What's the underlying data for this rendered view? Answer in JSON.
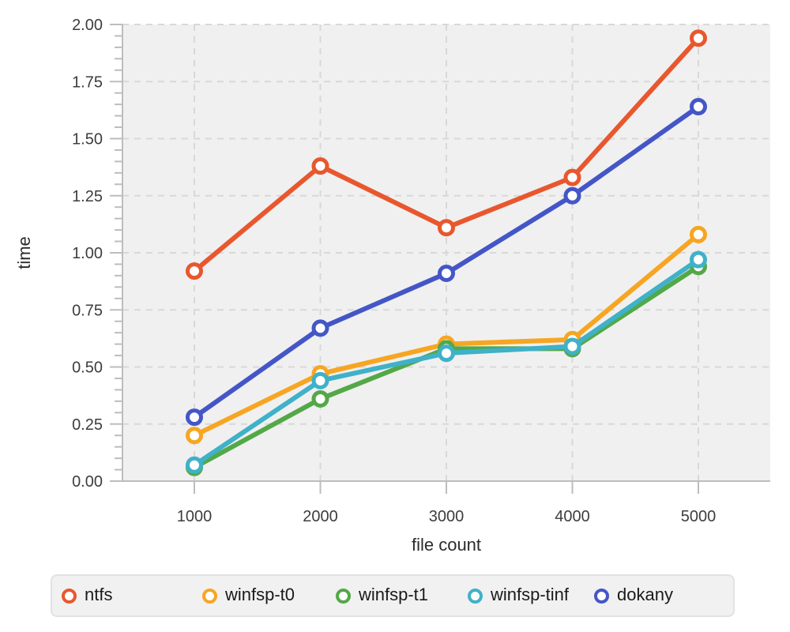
{
  "chart_data": {
    "type": "line",
    "title": "",
    "xlabel": "file count",
    "ylabel": "time",
    "x": [
      1000,
      2000,
      3000,
      4000,
      5000
    ],
    "xtick_labels": [
      "1000",
      "2000",
      "3000",
      "4000",
      "5000"
    ],
    "ylim": [
      0.0,
      2.0
    ],
    "ytick_step": 0.25,
    "yminor_tick_step": 0.05,
    "ytick_labels": [
      "0.00",
      "0.25",
      "0.50",
      "0.75",
      "1.00",
      "1.25",
      "1.50",
      "1.75",
      "2.00"
    ],
    "grid": "dashed major gridlines, horizontal and vertical",
    "legend_position": "bottom",
    "series": [
      {
        "name": "ntfs",
        "color": "#E8572E",
        "values": [
          0.92,
          1.38,
          1.11,
          1.33,
          1.94
        ]
      },
      {
        "name": "winfsp-t0",
        "color": "#F7A522",
        "values": [
          0.2,
          0.47,
          0.6,
          0.62,
          1.08
        ]
      },
      {
        "name": "winfsp-t1",
        "color": "#53A847",
        "values": [
          0.06,
          0.36,
          0.58,
          0.58,
          0.94
        ]
      },
      {
        "name": "winfsp-tinf",
        "color": "#3FB1C9",
        "values": [
          0.07,
          0.44,
          0.56,
          0.59,
          0.97
        ]
      },
      {
        "name": "dokany",
        "color": "#4456C7",
        "values": [
          0.28,
          0.67,
          0.91,
          1.25,
          1.64
        ]
      }
    ],
    "style_colors": {
      "plot_background": "#f0f0f0",
      "page_background": "#ffffff",
      "gridline": "#d8d8d8",
      "axis_spine": "#bdbdbd",
      "tick_mark": "#bdbdbd",
      "tick_label": "#3d3d3d",
      "axis_title": "#2b2b2b",
      "legend_background": "#f1f1f1",
      "legend_border": "#e2e2e2",
      "legend_text": "#1a1a1a",
      "marker_fill": "#ffffff"
    }
  }
}
